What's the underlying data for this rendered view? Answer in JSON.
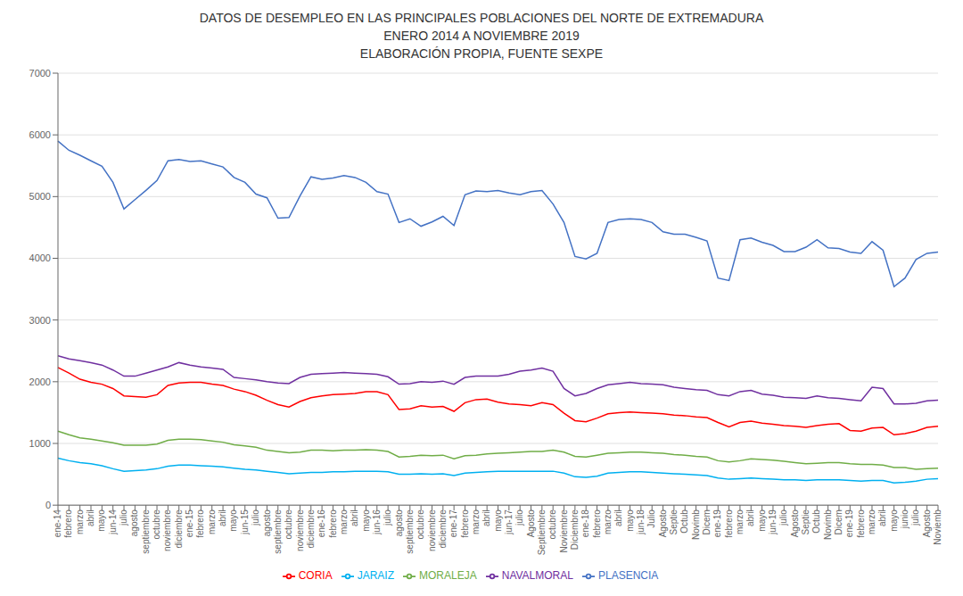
{
  "chart_data": {
    "type": "line",
    "title": "DATOS DE DESEMPLEO EN LAS PRINCIPALES POBLACIONES DEL NORTE DE EXTREMADURA\nENERO 2014 A  NOVIEMBRE 2019\nELABORACIÓN PROPIA, FUENTE SEXPE",
    "categories": [
      "ene-14",
      "febrero",
      "marzo",
      "abril",
      "mayo",
      "jun-14",
      "julio",
      "agosto",
      "septiembre",
      "octubre",
      "noviembre",
      "diciembre",
      "ene-15",
      "febrero",
      "marzo",
      "abril",
      "mayo",
      "jun-15",
      "julio",
      "agosto",
      "septiembre",
      "octubre",
      "noviembre",
      "diciembre",
      "ene-16",
      "febrero",
      "marzo",
      "abril",
      "mayo",
      "jun-16",
      "julio",
      "agosto",
      "septiembre",
      "octubre",
      "noviembre",
      "diciembre",
      "ene-17",
      "febrero",
      "marzo",
      "abril",
      "mayo",
      "jun-17",
      "julio",
      "Agosto",
      "Septiembre",
      "octubre",
      "Noviembre",
      "Diciembre",
      "ene-18",
      "febrero",
      "marzo",
      "abril",
      "mayo",
      "jun-18",
      "Julio",
      "Agosto",
      "Septie",
      "Octub",
      "Novimb",
      "Dicem",
      "ene-19",
      "febrero",
      "marzo",
      "abril",
      "mayo",
      "jun-19",
      "julio",
      "Agosto",
      "Septie",
      "Octub",
      "Novimb",
      "Dicem",
      "ene-19",
      "febrero",
      "marzo",
      "abril",
      "mayo",
      "junio",
      "julio",
      "Agosto",
      "Noviemb"
    ],
    "series": [
      {
        "name": "PLASENCIA",
        "color": "#4472C4",
        "values": [
          5900,
          5750,
          5670,
          5580,
          5490,
          5230,
          4800,
          4950,
          5100,
          5260,
          5580,
          5600,
          5570,
          5580,
          5530,
          5480,
          5310,
          5230,
          5040,
          4980,
          4650,
          4660,
          5010,
          5320,
          5280,
          5300,
          5340,
          5310,
          5230,
          5080,
          5040,
          4580,
          4640,
          4520,
          4590,
          4680,
          4530,
          5030,
          5090,
          5080,
          5100,
          5060,
          5030,
          5080,
          5100,
          4880,
          4580,
          4030,
          3990,
          4080,
          4580,
          4630,
          4640,
          4630,
          4580,
          4430,
          4390,
          4390,
          4340,
          4280,
          3680,
          3640,
          4300,
          4330,
          4260,
          4210,
          4110,
          4110,
          4180,
          4300,
          4170,
          4160,
          4100,
          4080,
          4270,
          4130,
          3540,
          3680,
          3980,
          4080,
          4100
        ]
      },
      {
        "name": "CORIA",
        "color": "#FF0000",
        "values": [
          2230,
          2140,
          2040,
          1990,
          1960,
          1890,
          1770,
          1760,
          1750,
          1790,
          1940,
          1980,
          1990,
          1990,
          1960,
          1940,
          1880,
          1840,
          1780,
          1700,
          1630,
          1590,
          1680,
          1740,
          1770,
          1790,
          1800,
          1810,
          1840,
          1840,
          1790,
          1550,
          1560,
          1610,
          1590,
          1600,
          1520,
          1660,
          1710,
          1720,
          1670,
          1640,
          1630,
          1610,
          1660,
          1630,
          1490,
          1370,
          1350,
          1410,
          1480,
          1500,
          1510,
          1500,
          1490,
          1480,
          1460,
          1450,
          1430,
          1420,
          1340,
          1270,
          1340,
          1360,
          1330,
          1310,
          1290,
          1280,
          1260,
          1290,
          1310,
          1320,
          1210,
          1200,
          1250,
          1260,
          1140,
          1160,
          1200,
          1260,
          1280
        ]
      },
      {
        "name": "MORALEJA",
        "color": "#70AD47",
        "values": [
          1200,
          1140,
          1090,
          1070,
          1040,
          1010,
          970,
          970,
          970,
          990,
          1050,
          1070,
          1070,
          1060,
          1040,
          1020,
          980,
          960,
          940,
          890,
          870,
          850,
          860,
          890,
          890,
          880,
          890,
          890,
          900,
          890,
          870,
          780,
          790,
          810,
          800,
          810,
          750,
          800,
          810,
          830,
          840,
          850,
          860,
          870,
          870,
          890,
          860,
          790,
          780,
          810,
          840,
          850,
          860,
          860,
          850,
          840,
          820,
          810,
          790,
          780,
          720,
          700,
          720,
          750,
          740,
          730,
          710,
          690,
          670,
          680,
          690,
          690,
          670,
          660,
          660,
          650,
          610,
          610,
          580,
          590,
          600
        ]
      },
      {
        "name": "NAVALMORAL",
        "color": "#7030A0",
        "values": [
          2420,
          2370,
          2340,
          2310,
          2270,
          2190,
          2090,
          2090,
          2140,
          2190,
          2240,
          2310,
          2270,
          2240,
          2220,
          2200,
          2070,
          2050,
          2030,
          2000,
          1980,
          1970,
          2070,
          2120,
          2130,
          2140,
          2150,
          2140,
          2130,
          2120,
          2080,
          1960,
          1970,
          2000,
          1990,
          2010,
          1960,
          2070,
          2090,
          2090,
          2090,
          2120,
          2170,
          2190,
          2220,
          2170,
          1890,
          1770,
          1810,
          1890,
          1950,
          1970,
          1990,
          1970,
          1960,
          1950,
          1910,
          1890,
          1870,
          1860,
          1790,
          1770,
          1840,
          1860,
          1800,
          1780,
          1750,
          1740,
          1730,
          1770,
          1740,
          1730,
          1710,
          1690,
          1910,
          1890,
          1640,
          1640,
          1650,
          1690,
          1700
        ]
      },
      {
        "name": "JARAIZ",
        "color": "#00B0F0",
        "values": [
          760,
          720,
          690,
          670,
          640,
          590,
          550,
          560,
          570,
          590,
          630,
          650,
          650,
          640,
          630,
          620,
          600,
          580,
          570,
          550,
          530,
          510,
          520,
          530,
          530,
          540,
          540,
          550,
          550,
          550,
          540,
          500,
          500,
          510,
          500,
          510,
          480,
          520,
          530,
          540,
          550,
          550,
          550,
          550,
          550,
          550,
          520,
          460,
          450,
          470,
          520,
          530,
          540,
          540,
          530,
          520,
          510,
          500,
          490,
          480,
          440,
          420,
          430,
          440,
          430,
          420,
          410,
          410,
          400,
          410,
          410,
          410,
          400,
          390,
          400,
          400,
          360,
          370,
          390,
          420,
          430
        ]
      }
    ],
    "ylim": [
      0,
      7000
    ],
    "yticks": [
      0,
      1000,
      2000,
      3000,
      4000,
      5000,
      6000,
      7000
    ],
    "grid": true,
    "legend": "bottom"
  }
}
